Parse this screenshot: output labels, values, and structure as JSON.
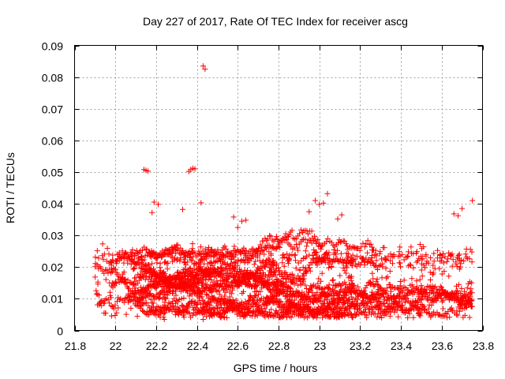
{
  "chart_data": {
    "type": "scatter",
    "title": "Day 227 of 2017, Rate Of TEC Index for receiver ascg",
    "xlabel": "GPS time / hours",
    "ylabel": "ROTI / TECUs",
    "xlim": [
      21.8,
      23.8
    ],
    "ylim": [
      0,
      0.09
    ],
    "xticks": [
      "21.8",
      "22",
      "22.2",
      "22.4",
      "22.6",
      "22.8",
      "23",
      "23.2",
      "23.4",
      "23.6",
      "23.8"
    ],
    "yticks": [
      "0",
      "0.01",
      "0.02",
      "0.03",
      "0.04",
      "0.05",
      "0.06",
      "0.07",
      "0.08",
      "0.09"
    ],
    "grid": true,
    "marker": "plus",
    "color": "#ff0000",
    "x_range_of_data": [
      21.9,
      23.75
    ],
    "notable_points": [
      {
        "x": 22.43,
        "y": 0.0835
      },
      {
        "x": 22.44,
        "y": 0.0825
      },
      {
        "x": 22.14,
        "y": 0.0508
      },
      {
        "x": 22.15,
        "y": 0.0505
      },
      {
        "x": 22.16,
        "y": 0.0503
      },
      {
        "x": 22.36,
        "y": 0.0502
      },
      {
        "x": 22.37,
        "y": 0.0508
      },
      {
        "x": 22.38,
        "y": 0.0512
      },
      {
        "x": 22.39,
        "y": 0.051
      },
      {
        "x": 23.04,
        "y": 0.0432
      },
      {
        "x": 23.75,
        "y": 0.041
      },
      {
        "x": 22.19,
        "y": 0.0405
      },
      {
        "x": 22.21,
        "y": 0.0398
      },
      {
        "x": 22.42,
        "y": 0.0403
      },
      {
        "x": 22.98,
        "y": 0.041
      },
      {
        "x": 23.0,
        "y": 0.0398
      },
      {
        "x": 23.02,
        "y": 0.0402
      },
      {
        "x": 22.18,
        "y": 0.0372
      },
      {
        "x": 22.33,
        "y": 0.0382
      },
      {
        "x": 22.58,
        "y": 0.0358
      },
      {
        "x": 22.6,
        "y": 0.0325
      },
      {
        "x": 22.62,
        "y": 0.0345
      },
      {
        "x": 22.64,
        "y": 0.0348
      },
      {
        "x": 22.95,
        "y": 0.0375
      },
      {
        "x": 23.11,
        "y": 0.0365
      },
      {
        "x": 23.09,
        "y": 0.0352
      },
      {
        "x": 23.7,
        "y": 0.0385
      },
      {
        "x": 23.68,
        "y": 0.0362
      },
      {
        "x": 23.66,
        "y": 0.0368
      },
      {
        "x": 22.43,
        "y": 0.0035
      },
      {
        "x": 22.24,
        "y": 0.0035
      },
      {
        "x": 22.22,
        "y": 0.0042
      }
    ],
    "bulk_distribution": {
      "description": "dense band of points",
      "y_core_range": [
        0.004,
        0.025
      ],
      "y_upper_range": [
        0.025,
        0.032
      ]
    }
  }
}
